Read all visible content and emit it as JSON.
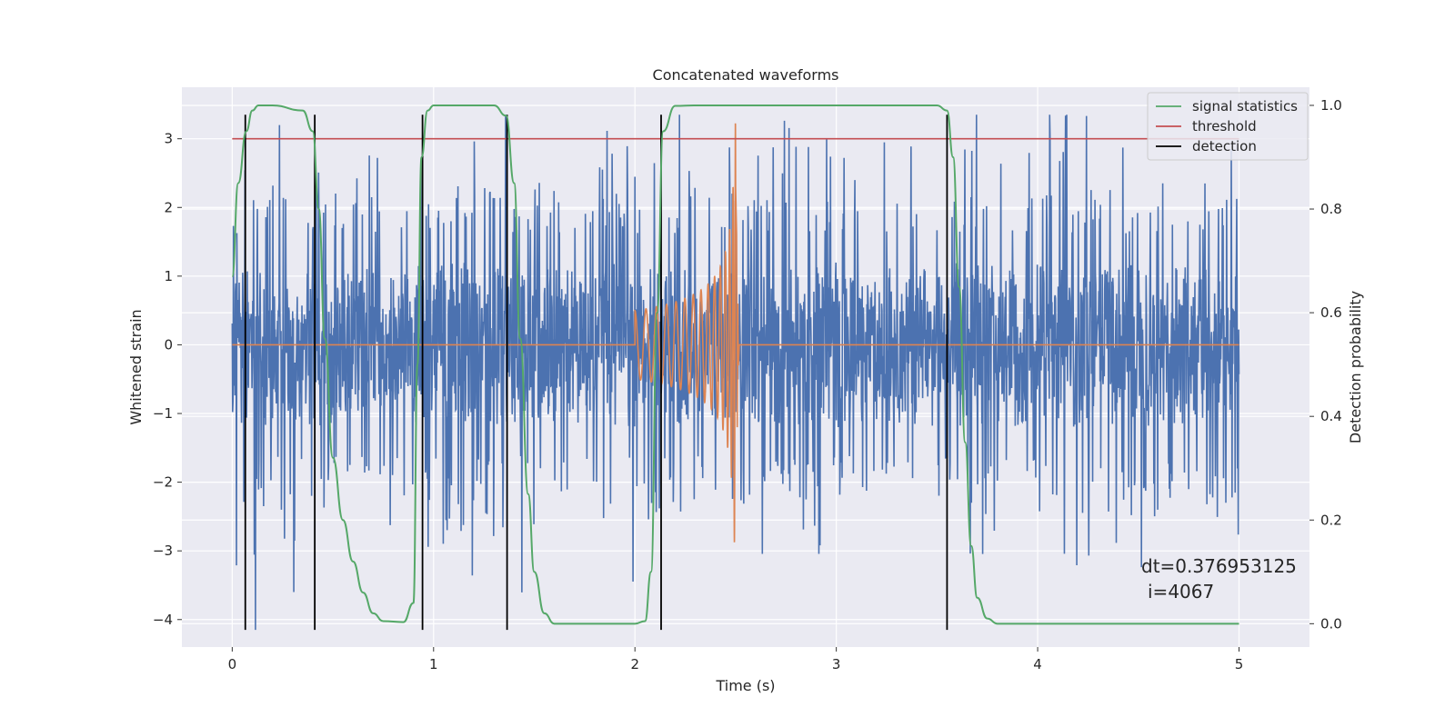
{
  "chart_data": {
    "type": "line",
    "title": "Concatenated waveforms",
    "xlabel": "Time (s)",
    "ylabel": "Whitened strain",
    "y2label": "Detection probability",
    "xlim": [
      -0.25,
      5.35
    ],
    "ylim": [
      -4.4,
      3.75
    ],
    "y2lim": [
      -0.045,
      1.035
    ],
    "xticks": [
      0,
      1,
      2,
      3,
      4,
      5
    ],
    "yticks": [
      -4,
      -3,
      -2,
      -1,
      0,
      1,
      2,
      3
    ],
    "y2ticks": [
      0.0,
      0.2,
      0.4,
      0.6,
      0.8,
      1.0
    ],
    "xtick_labels": [
      "0",
      "1",
      "2",
      "3",
      "4",
      "5"
    ],
    "ytick_labels": [
      "−4",
      "−3",
      "−2",
      "−1",
      "0",
      "1",
      "2",
      "3"
    ],
    "y2tick_labels": [
      "0.0",
      "0.2",
      "0.4",
      "0.6",
      "0.8",
      "1.0"
    ],
    "grid": true,
    "legend_position": "top-right",
    "legend": [
      {
        "label": "signal statistics",
        "color": "#55a868"
      },
      {
        "label": "threshold",
        "color": "#c44e52"
      },
      {
        "label": "detection",
        "color": "#000000"
      }
    ],
    "series": [
      {
        "name": "",
        "role": "whitened strain noise",
        "color": "#4c72b0",
        "x_range": [
          0,
          5
        ],
        "typical_amplitude": [
          -1.2,
          1.3
        ],
        "max": 3.35,
        "min": -4.15
      },
      {
        "name": "",
        "role": "injected chirp waveform",
        "color": "#dd8452",
        "x_range": [
          0,
          5
        ],
        "chirp_start": 2.0,
        "chirp_peak_time": 2.5,
        "chirp_start_amplitude": 0.5,
        "chirp_peak_amplitude": 3.25,
        "chirp_min": -3.05
      },
      {
        "name": "signal statistics",
        "axis": "right",
        "color": "#55a868",
        "x": [
          0.0,
          0.03,
          0.07,
          0.1,
          0.13,
          0.2,
          0.35,
          0.4,
          0.43,
          0.46,
          0.5,
          0.55,
          0.6,
          0.65,
          0.7,
          0.75,
          0.85,
          0.9,
          0.92,
          0.94,
          0.97,
          1.0,
          1.3,
          1.36,
          1.4,
          1.43,
          1.47,
          1.5,
          1.55,
          1.6,
          2.0,
          2.05,
          2.08,
          2.11,
          2.14,
          2.2,
          2.3,
          3.5,
          3.55,
          3.58,
          3.61,
          3.64,
          3.67,
          3.7,
          3.75,
          3.8,
          5.0
        ],
        "values": [
          0.67,
          0.85,
          0.95,
          0.99,
          1.0,
          1.0,
          0.99,
          0.95,
          0.8,
          0.55,
          0.32,
          0.2,
          0.12,
          0.06,
          0.02,
          0.005,
          0.003,
          0.04,
          0.5,
          0.9,
          0.99,
          1.0,
          1.0,
          0.98,
          0.85,
          0.55,
          0.25,
          0.1,
          0.02,
          0.0,
          0.0,
          0.005,
          0.1,
          0.6,
          0.95,
          0.999,
          1.0,
          1.0,
          0.99,
          0.9,
          0.65,
          0.35,
          0.15,
          0.05,
          0.01,
          0.0,
          0.0
        ]
      },
      {
        "name": "threshold",
        "color": "#c44e52",
        "x": [
          0,
          5
        ],
        "values": [
          3,
          3
        ]
      }
    ],
    "detections": [
      0.065,
      0.41,
      0.945,
      1.365,
      2.13,
      3.55
    ],
    "detection_y_range": [
      -4.15,
      3.35
    ]
  },
  "annotation": {
    "line1": "dt=0.376953125",
    "line2": "i=4067"
  }
}
